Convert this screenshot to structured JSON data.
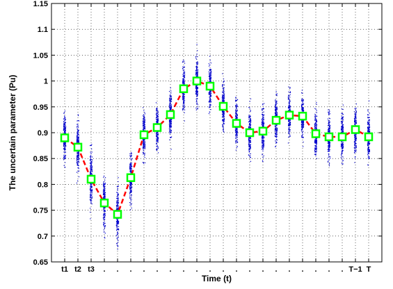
{
  "chart_data": {
    "type": "scatter",
    "title": "",
    "xlabel": "Time (t)",
    "ylabel": "The uncertain parameter (Pu)",
    "ylim": [
      0.65,
      1.15
    ],
    "yticks": [
      0.65,
      0.7,
      0.75,
      0.8,
      0.85,
      0.9,
      0.95,
      1,
      1.05,
      1.1,
      1.15
    ],
    "ytick_labels": [
      "0.65",
      "0.7",
      "0.75",
      "0.8",
      "0.85",
      "0.9",
      "0.95",
      "1",
      "1.05",
      "1.1",
      "1.15"
    ],
    "xtick_labels": [
      "t1",
      "t2",
      "t3",
      ".",
      ".",
      ".",
      ".",
      ".",
      ".",
      ".",
      ".",
      ".",
      ".",
      ".",
      ".",
      ".",
      ".",
      ".",
      ".",
      ".",
      ".",
      ".",
      "T−1",
      "T"
    ],
    "grid": true,
    "grid_style": "dotted",
    "series": [
      {
        "style": "dashed-line-square-markers",
        "line_color": "#ff0000",
        "marker_edge_color": "#00ff00",
        "marker_face_color": "#ffffff",
        "values": [
          0.89,
          0.872,
          0.81,
          0.764,
          0.742,
          0.813,
          0.896,
          0.91,
          0.935,
          0.985,
          1.0,
          0.99,
          0.951,
          0.918,
          0.9,
          0.903,
          0.924,
          0.934,
          0.932,
          0.898,
          0.892,
          0.892,
          0.906,
          0.892
        ]
      },
      {
        "style": "scatter-dots",
        "color": "#0000cc",
        "min": [
          0.805,
          0.79,
          0.7,
          0.655,
          0.66,
          0.73,
          0.81,
          0.83,
          0.85,
          0.89,
          0.91,
          0.9,
          0.86,
          0.83,
          0.81,
          0.81,
          0.83,
          0.85,
          0.85,
          0.79,
          0.79,
          0.79,
          0.8,
          0.79
        ],
        "max": [
          0.985,
          0.985,
          0.91,
          0.87,
          0.86,
          0.92,
          0.99,
          1.005,
          1.03,
          1.08,
          1.105,
          1.095,
          1.05,
          1.01,
          1.0,
          1.01,
          1.02,
          1.025,
          1.02,
          0.99,
          0.985,
          0.985,
          0.99,
          0.985
        ]
      }
    ]
  }
}
